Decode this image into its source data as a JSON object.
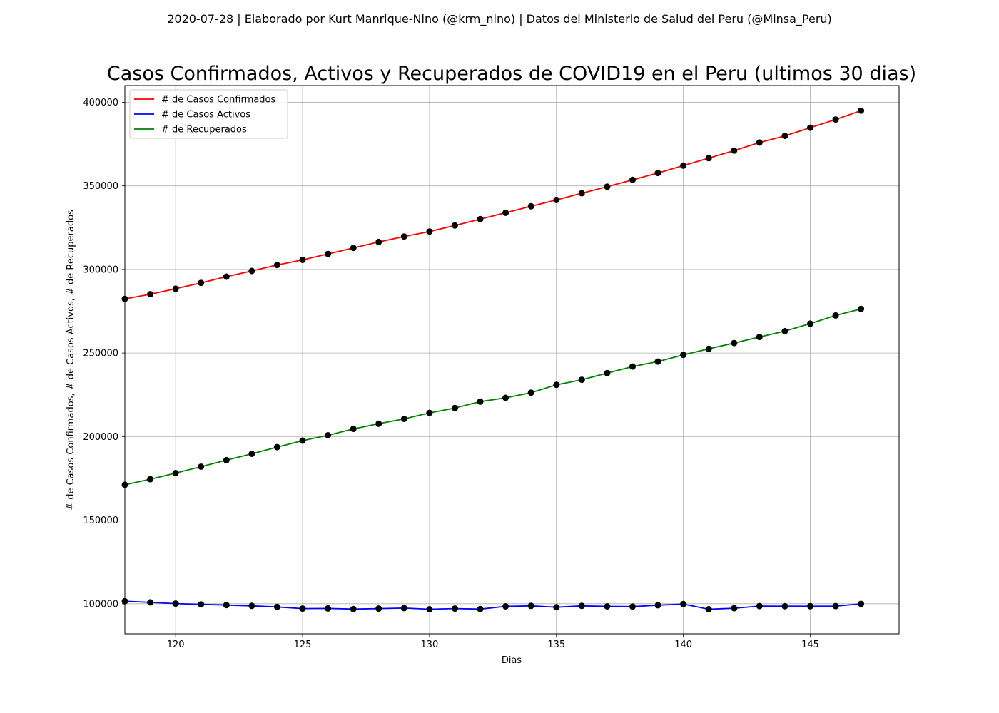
{
  "header": {
    "suptitle": "2020-07-28 | Elaborado por Kurt Manrique-Nino (@krm_nino) | Datos del Ministerio de Salud del Peru (@Minsa_Peru)"
  },
  "chart_data": {
    "type": "line",
    "title": "Casos Confirmados, Activos y Recuperados de COVID19 en el Peru (ultimos 30 dias)",
    "xlabel": "Dias",
    "ylabel": "# de Casos Confirmados, # de Casos Activos, # de Recuperados",
    "xlim": [
      118,
      148.5
    ],
    "ylim": [
      82000,
      410000
    ],
    "xticks": [
      120,
      125,
      130,
      135,
      140,
      145
    ],
    "yticks": [
      100000,
      150000,
      200000,
      250000,
      300000,
      350000,
      400000
    ],
    "grid": true,
    "legend_position": "top-left",
    "marker_color": "#000000",
    "x": [
      118,
      119,
      120,
      121,
      122,
      123,
      124,
      125,
      126,
      127,
      128,
      129,
      130,
      131,
      132,
      133,
      134,
      135,
      136,
      137,
      138,
      139,
      140,
      141,
      142,
      143,
      144,
      145,
      146,
      147
    ],
    "series": [
      {
        "name": "# de Casos Confirmados",
        "color": "#ff0000",
        "values": [
          282400,
          285200,
          288500,
          292000,
          295700,
          299100,
          302700,
          305700,
          309300,
          312900,
          316400,
          319700,
          322700,
          326300,
          330100,
          333900,
          337800,
          341600,
          345600,
          349500,
          353600,
          357700,
          362100,
          366600,
          371100,
          375900,
          379900,
          384800,
          389700,
          395000
        ]
      },
      {
        "name": "# de Casos Activos",
        "color": "#0000ff",
        "values": [
          101500,
          100800,
          100100,
          99600,
          99200,
          98700,
          98100,
          97100,
          97200,
          96800,
          97100,
          97400,
          96700,
          97100,
          96800,
          98400,
          98700,
          97900,
          98700,
          98400,
          98300,
          99100,
          99800,
          96700,
          97300,
          98600,
          98500,
          98500,
          98600,
          99900
        ]
      },
      {
        "name": "# de Recuperados",
        "color": "#008000",
        "values": [
          171200,
          174500,
          178200,
          182000,
          185900,
          189700,
          193700,
          197600,
          200800,
          204600,
          207700,
          210600,
          214200,
          217100,
          220900,
          223200,
          226300,
          231000,
          234000,
          238000,
          241900,
          244900,
          248900,
          252500,
          256000,
          259600,
          263100,
          267600,
          272500,
          276400
        ]
      }
    ]
  }
}
